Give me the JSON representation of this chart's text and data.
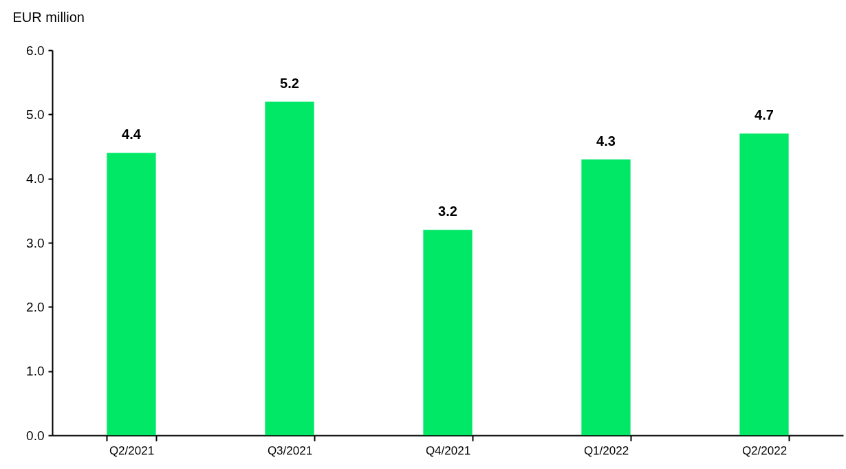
{
  "chart_data": {
    "type": "bar",
    "ylabel": "EUR million",
    "categories": [
      "Q2/2021",
      "Q3/2021",
      "Q4/2021",
      "Q1/2022",
      "Q2/2022"
    ],
    "values": [
      4.4,
      5.2,
      3.2,
      4.3,
      4.7
    ],
    "color": "#00e865",
    "ylim": [
      0,
      6
    ],
    "yticks": [
      {
        "value": 0,
        "label": "0.0"
      },
      {
        "value": 1,
        "label": "1.0"
      },
      {
        "value": 2,
        "label": "2.0"
      },
      {
        "value": 3,
        "label": "3.0"
      },
      {
        "value": 4,
        "label": "4.0"
      },
      {
        "value": 5,
        "label": "5.0"
      },
      {
        "value": 6,
        "label": "6.0"
      }
    ],
    "data_labels": true,
    "grid": false
  }
}
